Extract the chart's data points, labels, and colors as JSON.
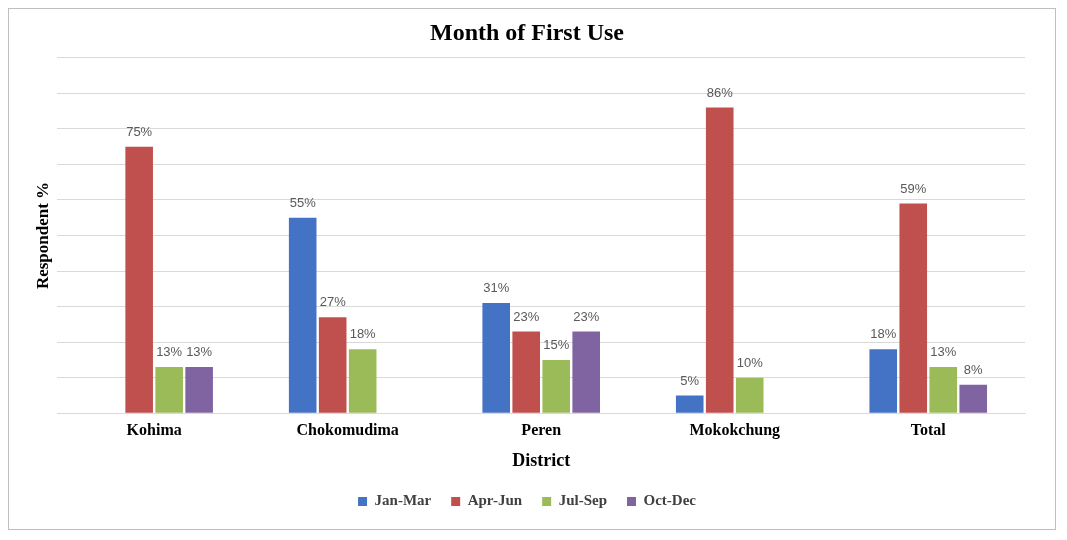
{
  "chart_data": {
    "type": "bar",
    "title": "Month of First Use",
    "xlabel": "District",
    "ylabel": "Respondent %",
    "categories": [
      "Kohima",
      "Chokomudima",
      "Peren",
      "Mokokchung",
      "Total"
    ],
    "series": [
      {
        "name": "Jan-Mar",
        "color": "#4472c4",
        "values": [
          null,
          55,
          31,
          5,
          18
        ],
        "value_labels": [
          null,
          "55%",
          "31%",
          "5%",
          "18%"
        ]
      },
      {
        "name": "Apr-Jun",
        "color": "#c0504d",
        "values": [
          75,
          27,
          23,
          86,
          59
        ],
        "value_labels": [
          "75%",
          "27%",
          "23%",
          "86%",
          "59%"
        ]
      },
      {
        "name": "Jul-Sep",
        "color": "#9bbb59",
        "values": [
          13,
          18,
          15,
          10,
          13
        ],
        "value_labels": [
          "13%",
          "18%",
          "15%",
          "10%",
          "13%"
        ]
      },
      {
        "name": "Oct-Dec",
        "color": "#8064a2",
        "values": [
          13,
          null,
          23,
          null,
          8
        ],
        "value_labels": [
          "13%",
          null,
          "23%",
          null,
          "8%"
        ]
      }
    ],
    "ylim": [
      0,
      100
    ],
    "yticks": [
      {
        "value": 0,
        "label": null
      },
      {
        "value": 10,
        "label": null
      },
      {
        "value": 20,
        "label": null
      },
      {
        "value": 30,
        "label": null
      },
      {
        "value": 40,
        "label": null
      },
      {
        "value": 50,
        "label": null
      },
      {
        "value": 60,
        "label": null
      },
      {
        "value": 70,
        "label": null
      },
      {
        "value": 80,
        "label": null
      },
      {
        "value": 90,
        "label": null
      },
      {
        "value": 100,
        "label": null
      }
    ],
    "tick_labels": "x",
    "grid": "y",
    "legend": "bottom"
  }
}
